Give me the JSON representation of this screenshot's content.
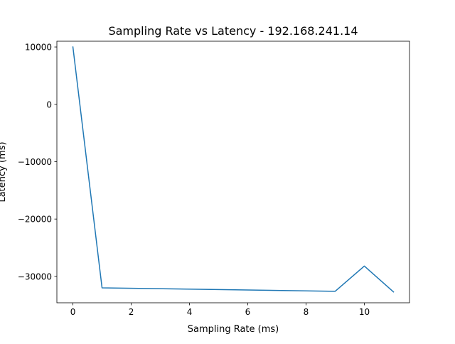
{
  "chart_data": {
    "type": "line",
    "title": "Sampling Rate vs Latency - 192.168.241.14",
    "xlabel": "Sampling Rate (ms)",
    "ylabel": "Latency (ms)",
    "xlim": [
      -0.55,
      11.55
    ],
    "ylim": [
      -34600,
      11000
    ],
    "xticks": [
      0,
      2,
      4,
      6,
      8,
      10
    ],
    "xtick_labels": [
      "0",
      "2",
      "4",
      "6",
      "8",
      "10"
    ],
    "yticks": [
      10000,
      0,
      -10000,
      -20000,
      -30000
    ],
    "ytick_labels": [
      "10000",
      "0",
      "−10000",
      "−20000",
      "−30000"
    ],
    "grid": false,
    "series": [
      {
        "color": "#1f77b4",
        "x": [
          0,
          1,
          9,
          10,
          11
        ],
        "y": [
          10000,
          -32000,
          -32600,
          -28200,
          -32700
        ]
      }
    ]
  }
}
